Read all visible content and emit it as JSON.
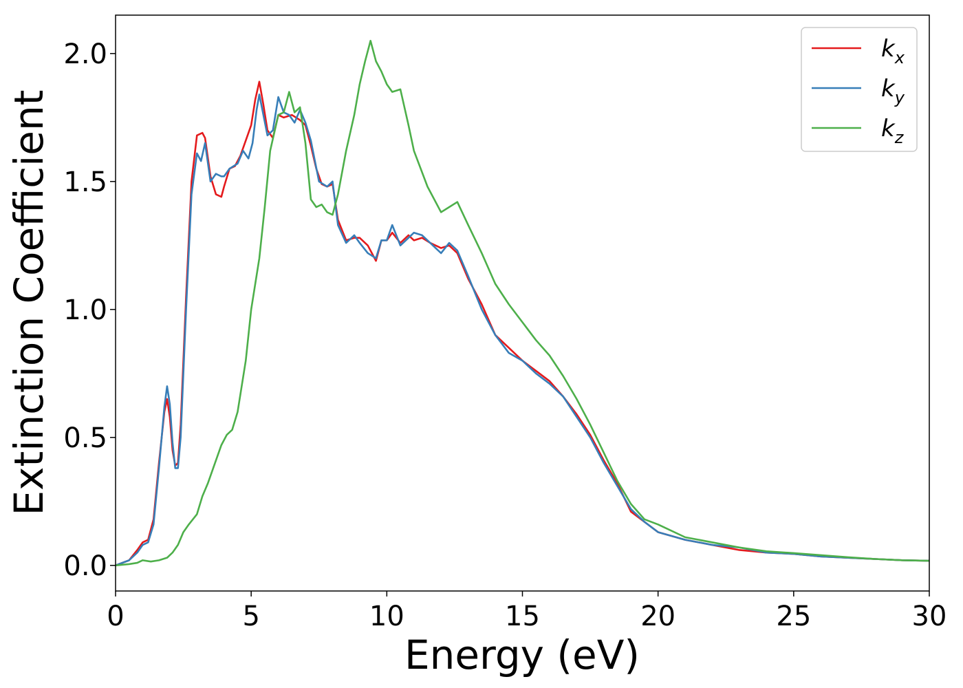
{
  "chart_data": {
    "type": "line",
    "title": "",
    "xlabel": "Energy (eV)",
    "ylabel": "Extinction Coefficient",
    "xlim": [
      0,
      30
    ],
    "ylim": [
      -0.1,
      2.15
    ],
    "xticks": [
      0,
      5,
      10,
      15,
      20,
      25,
      30
    ],
    "xtick_labels": [
      "0",
      "5",
      "10",
      "15",
      "20",
      "25",
      "30"
    ],
    "yticks": [
      0.0,
      0.5,
      1.0,
      1.5,
      2.0
    ],
    "ytick_labels": [
      "0.0",
      "0.5",
      "1.0",
      "1.5",
      "2.0"
    ],
    "grid": false,
    "legend_position": "top-right",
    "series": [
      {
        "name": "k",
        "subscript": "x",
        "color": "#e41a1c",
        "x": [
          0,
          0.5,
          0.8,
          1.0,
          1.2,
          1.4,
          1.6,
          1.8,
          1.9,
          2.0,
          2.1,
          2.2,
          2.3,
          2.4,
          2.6,
          2.8,
          3.0,
          3.2,
          3.3,
          3.5,
          3.7,
          3.9,
          4.0,
          4.2,
          4.4,
          4.6,
          4.8,
          5.0,
          5.15,
          5.3,
          5.45,
          5.6,
          5.8,
          6.0,
          6.2,
          6.5,
          6.8,
          7.0,
          7.2,
          7.4,
          7.6,
          7.8,
          8.0,
          8.2,
          8.5,
          8.8,
          9.0,
          9.3,
          9.6,
          9.8,
          10.0,
          10.2,
          10.5,
          10.8,
          11.0,
          11.3,
          11.6,
          12.0,
          12.3,
          12.6,
          13.0,
          13.5,
          14.0,
          14.5,
          15.0,
          15.5,
          16.0,
          16.5,
          17.0,
          17.5,
          18.0,
          18.5,
          19.0,
          19.5,
          20.0,
          21.0,
          22.0,
          23.0,
          24.0,
          25.0,
          26.0,
          27.0,
          28.0,
          29.0,
          30.0
        ],
        "y": [
          0.0,
          0.02,
          0.06,
          0.09,
          0.1,
          0.18,
          0.4,
          0.6,
          0.65,
          0.58,
          0.45,
          0.39,
          0.4,
          0.55,
          1.05,
          1.5,
          1.68,
          1.69,
          1.67,
          1.52,
          1.45,
          1.44,
          1.48,
          1.55,
          1.56,
          1.6,
          1.66,
          1.72,
          1.82,
          1.89,
          1.8,
          1.7,
          1.67,
          1.76,
          1.75,
          1.76,
          1.74,
          1.72,
          1.64,
          1.55,
          1.49,
          1.48,
          1.49,
          1.35,
          1.27,
          1.28,
          1.28,
          1.25,
          1.19,
          1.27,
          1.27,
          1.3,
          1.26,
          1.29,
          1.27,
          1.28,
          1.26,
          1.24,
          1.25,
          1.22,
          1.12,
          1.02,
          0.9,
          0.85,
          0.8,
          0.76,
          0.72,
          0.66,
          0.59,
          0.51,
          0.41,
          0.32,
          0.21,
          0.17,
          0.13,
          0.1,
          0.08,
          0.06,
          0.05,
          0.045,
          0.035,
          0.03,
          0.025,
          0.02,
          0.018
        ]
      },
      {
        "name": "k",
        "subscript": "y",
        "color": "#377eb8",
        "x": [
          0,
          0.5,
          0.8,
          1.0,
          1.2,
          1.4,
          1.6,
          1.8,
          1.9,
          2.0,
          2.1,
          2.2,
          2.3,
          2.4,
          2.6,
          2.8,
          3.0,
          3.15,
          3.3,
          3.5,
          3.7,
          3.9,
          4.0,
          4.2,
          4.5,
          4.7,
          4.9,
          5.05,
          5.2,
          5.3,
          5.45,
          5.6,
          5.8,
          6.0,
          6.2,
          6.4,
          6.6,
          6.8,
          7.0,
          7.2,
          7.5,
          7.8,
          8.0,
          8.2,
          8.5,
          8.8,
          9.0,
          9.3,
          9.6,
          9.8,
          10.0,
          10.2,
          10.5,
          10.8,
          11.0,
          11.3,
          11.6,
          12.0,
          12.3,
          12.6,
          13.0,
          13.5,
          14.0,
          14.5,
          15.0,
          15.5,
          16.0,
          16.5,
          17.0,
          17.5,
          18.0,
          18.5,
          19.0,
          19.5,
          20.0,
          21.0,
          22.0,
          23.0,
          24.0,
          25.0,
          26.0,
          27.0,
          28.0,
          29.0,
          30.0
        ],
        "y": [
          0.0,
          0.02,
          0.05,
          0.08,
          0.09,
          0.16,
          0.38,
          0.62,
          0.7,
          0.63,
          0.48,
          0.38,
          0.38,
          0.5,
          1.0,
          1.45,
          1.61,
          1.58,
          1.65,
          1.5,
          1.53,
          1.52,
          1.52,
          1.55,
          1.57,
          1.62,
          1.59,
          1.65,
          1.78,
          1.84,
          1.76,
          1.68,
          1.7,
          1.83,
          1.77,
          1.76,
          1.73,
          1.78,
          1.73,
          1.66,
          1.5,
          1.48,
          1.5,
          1.33,
          1.26,
          1.29,
          1.26,
          1.22,
          1.2,
          1.27,
          1.27,
          1.33,
          1.25,
          1.28,
          1.3,
          1.29,
          1.26,
          1.22,
          1.26,
          1.23,
          1.13,
          1.0,
          0.9,
          0.83,
          0.8,
          0.75,
          0.71,
          0.66,
          0.58,
          0.5,
          0.4,
          0.31,
          0.22,
          0.17,
          0.13,
          0.1,
          0.08,
          0.07,
          0.05,
          0.045,
          0.035,
          0.03,
          0.025,
          0.02,
          0.018
        ]
      },
      {
        "name": "k",
        "subscript": "z",
        "color": "#4daf4a",
        "x": [
          0,
          0.5,
          0.8,
          1.0,
          1.3,
          1.6,
          1.9,
          2.1,
          2.3,
          2.5,
          2.7,
          3.0,
          3.2,
          3.4,
          3.6,
          3.9,
          4.1,
          4.3,
          4.5,
          4.8,
          5.0,
          5.3,
          5.5,
          5.7,
          6.0,
          6.2,
          6.4,
          6.6,
          6.8,
          7.0,
          7.2,
          7.4,
          7.6,
          7.8,
          8.0,
          8.2,
          8.5,
          8.8,
          9.0,
          9.2,
          9.4,
          9.6,
          9.8,
          10.0,
          10.2,
          10.5,
          10.8,
          11.0,
          11.5,
          12.0,
          12.3,
          12.6,
          13.0,
          13.5,
          14.0,
          14.5,
          15.0,
          15.5,
          16.0,
          16.5,
          17.0,
          17.5,
          18.0,
          18.5,
          19.0,
          19.5,
          20.0,
          21.0,
          22.0,
          23.0,
          24.0,
          25.0,
          26.0,
          27.0,
          28.0,
          29.0,
          30.0
        ],
        "y": [
          0.0,
          0.005,
          0.01,
          0.02,
          0.015,
          0.02,
          0.03,
          0.05,
          0.08,
          0.13,
          0.16,
          0.2,
          0.27,
          0.32,
          0.38,
          0.47,
          0.51,
          0.53,
          0.6,
          0.8,
          1.0,
          1.2,
          1.4,
          1.62,
          1.76,
          1.77,
          1.85,
          1.77,
          1.79,
          1.65,
          1.43,
          1.4,
          1.41,
          1.38,
          1.37,
          1.45,
          1.62,
          1.76,
          1.88,
          1.97,
          2.05,
          1.97,
          1.93,
          1.88,
          1.85,
          1.86,
          1.72,
          1.62,
          1.48,
          1.38,
          1.4,
          1.42,
          1.33,
          1.22,
          1.1,
          1.02,
          0.95,
          0.88,
          0.82,
          0.74,
          0.65,
          0.55,
          0.44,
          0.33,
          0.24,
          0.18,
          0.16,
          0.11,
          0.09,
          0.07,
          0.055,
          0.048,
          0.04,
          0.032,
          0.025,
          0.02,
          0.018
        ]
      }
    ]
  }
}
